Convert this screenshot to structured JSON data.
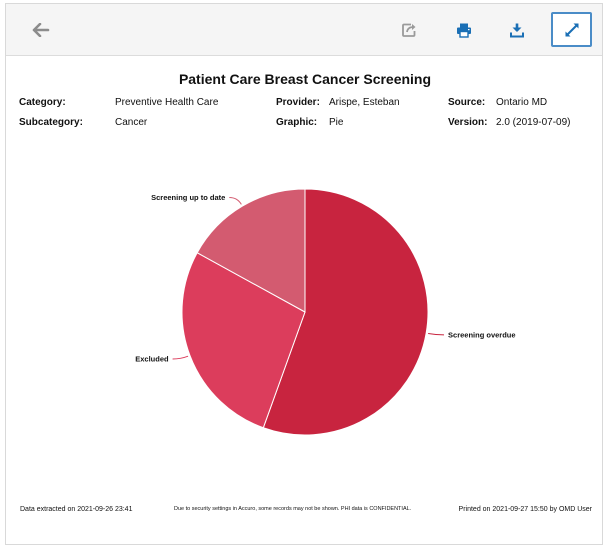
{
  "toolbar": {
    "buttons": [
      {
        "name": "back-button",
        "icon": "arrow-left-icon"
      },
      {
        "name": "share-button",
        "icon": "share-icon"
      },
      {
        "name": "print-button",
        "icon": "printer-icon"
      },
      {
        "name": "export-button",
        "icon": "download-icon"
      },
      {
        "name": "fullscreen-button",
        "icon": "expand-icon"
      }
    ]
  },
  "report": {
    "title": "Patient Care Breast Cancer Screening",
    "category_label": "Category:",
    "category_value": "Preventive Health Care",
    "provider_label": "Provider:",
    "provider_value": "Arispe, Esteban",
    "source_label": "Source:",
    "source_value": "Ontario MD",
    "subcategory_label": "Subcategory:",
    "subcategory_value": "Cancer",
    "graphic_label": "Graphic:",
    "graphic_value": "Pie",
    "version_label": "Version:",
    "version_value": "2.0 (2019-07-09)"
  },
  "footer": {
    "extracted": "Data extracted on 2021-09-26 23:41",
    "notice": "Due to security settings in Accuro, some records may not be shown.  PHI data is CONFIDENTIAL.",
    "printed": "Printed on 2021-09-27 15:50 by OMD User"
  },
  "colors": {
    "screening_overdue": "#c8243f",
    "excluded": "#dc3d5c",
    "screening_up_to_date": "#d35b70",
    "accent": "#1a6fb5"
  },
  "chart_data": {
    "type": "pie",
    "title": "",
    "slices": [
      {
        "label": "Screening overdue",
        "value": 55.5,
        "color": "#c8243f"
      },
      {
        "label": "Excluded",
        "value": 27.5,
        "color": "#dc3d5c"
      },
      {
        "label": "Screening up to date",
        "value": 17.0,
        "color": "#d35b70"
      }
    ],
    "start_angle_deg": 0,
    "direction": "clockwise",
    "legend": "none",
    "labels": "outside-with-leader-lines"
  }
}
